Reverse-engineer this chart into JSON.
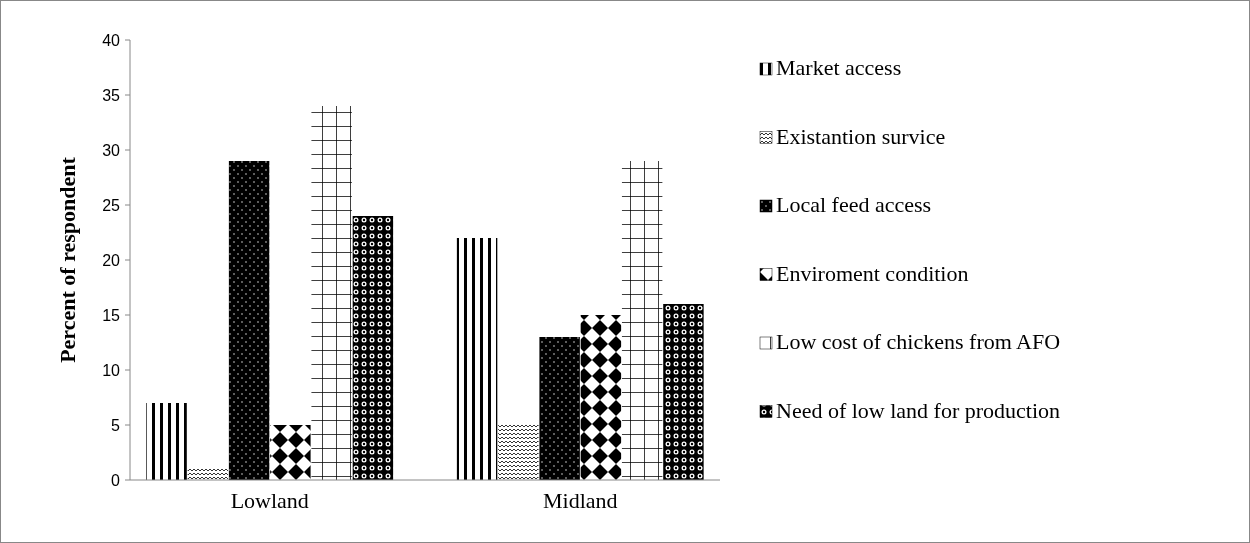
{
  "chart_data": {
    "type": "bar",
    "ylabel": "Percent of respondent",
    "categories": [
      "Lowland",
      "Midland"
    ],
    "series": [
      {
        "name": "Market access",
        "color": "#000000",
        "values": [
          7,
          22
        ]
      },
      {
        "name": "Existantion survice",
        "color": "#000000",
        "values": [
          1,
          5
        ]
      },
      {
        "name": "Local feed access",
        "color": "#000000",
        "values": [
          29,
          13
        ]
      },
      {
        "name": "Enviroment condition",
        "color": "#000000",
        "values": [
          5,
          15
        ]
      },
      {
        "name": "Low cost of chickens from AFO",
        "color": "#000000",
        "values": [
          34,
          29
        ]
      },
      {
        "name": "Need of low land for production",
        "color": "#000000",
        "values": [
          24,
          16
        ]
      }
    ],
    "ylim": [
      0,
      40
    ],
    "yticks": [
      0,
      5,
      10,
      15,
      20,
      25,
      30,
      35,
      40
    ],
    "grid": false,
    "legend": "right"
  }
}
